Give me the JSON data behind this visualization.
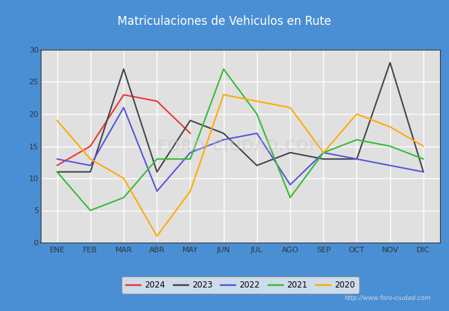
{
  "title": "Matriculaciones de Vehiculos en Rute",
  "title_bg_color": "#4a8fd4",
  "title_text_color": "#ffffff",
  "months": [
    "ENE",
    "FEB",
    "MAR",
    "ABR",
    "MAY",
    "JUN",
    "JUL",
    "AGO",
    "SEP",
    "OCT",
    "NOV",
    "DIC"
  ],
  "ylim": [
    0,
    30
  ],
  "yticks": [
    0,
    5,
    10,
    15,
    20,
    25,
    30
  ],
  "series": {
    "2024": {
      "color": "#ee3333",
      "data": [
        12,
        15,
        23,
        22,
        17,
        null,
        null,
        null,
        null,
        null,
        null,
        null
      ]
    },
    "2023": {
      "color": "#444444",
      "data": [
        11,
        11,
        27,
        11,
        19,
        17,
        12,
        14,
        13,
        13,
        28,
        11
      ]
    },
    "2022": {
      "color": "#5555dd",
      "data": [
        13,
        12,
        21,
        8,
        14,
        16,
        17,
        9,
        14,
        13,
        12,
        11
      ]
    },
    "2021": {
      "color": "#33bb33",
      "data": [
        11,
        5,
        7,
        13,
        13,
        27,
        20,
        7,
        14,
        16,
        15,
        13
      ]
    },
    "2020": {
      "color": "#ffaa00",
      "data": [
        19,
        13,
        10,
        1,
        8,
        23,
        22,
        21,
        14,
        20,
        18,
        15
      ]
    }
  },
  "watermark": "http://www.foro-ciudad.com",
  "bg_plot_color": "#e0e0e0",
  "grid_color": "#ffffff",
  "legend_order": [
    "2024",
    "2023",
    "2022",
    "2021",
    "2020"
  ],
  "fig_bg_color": "#4a8fd4"
}
